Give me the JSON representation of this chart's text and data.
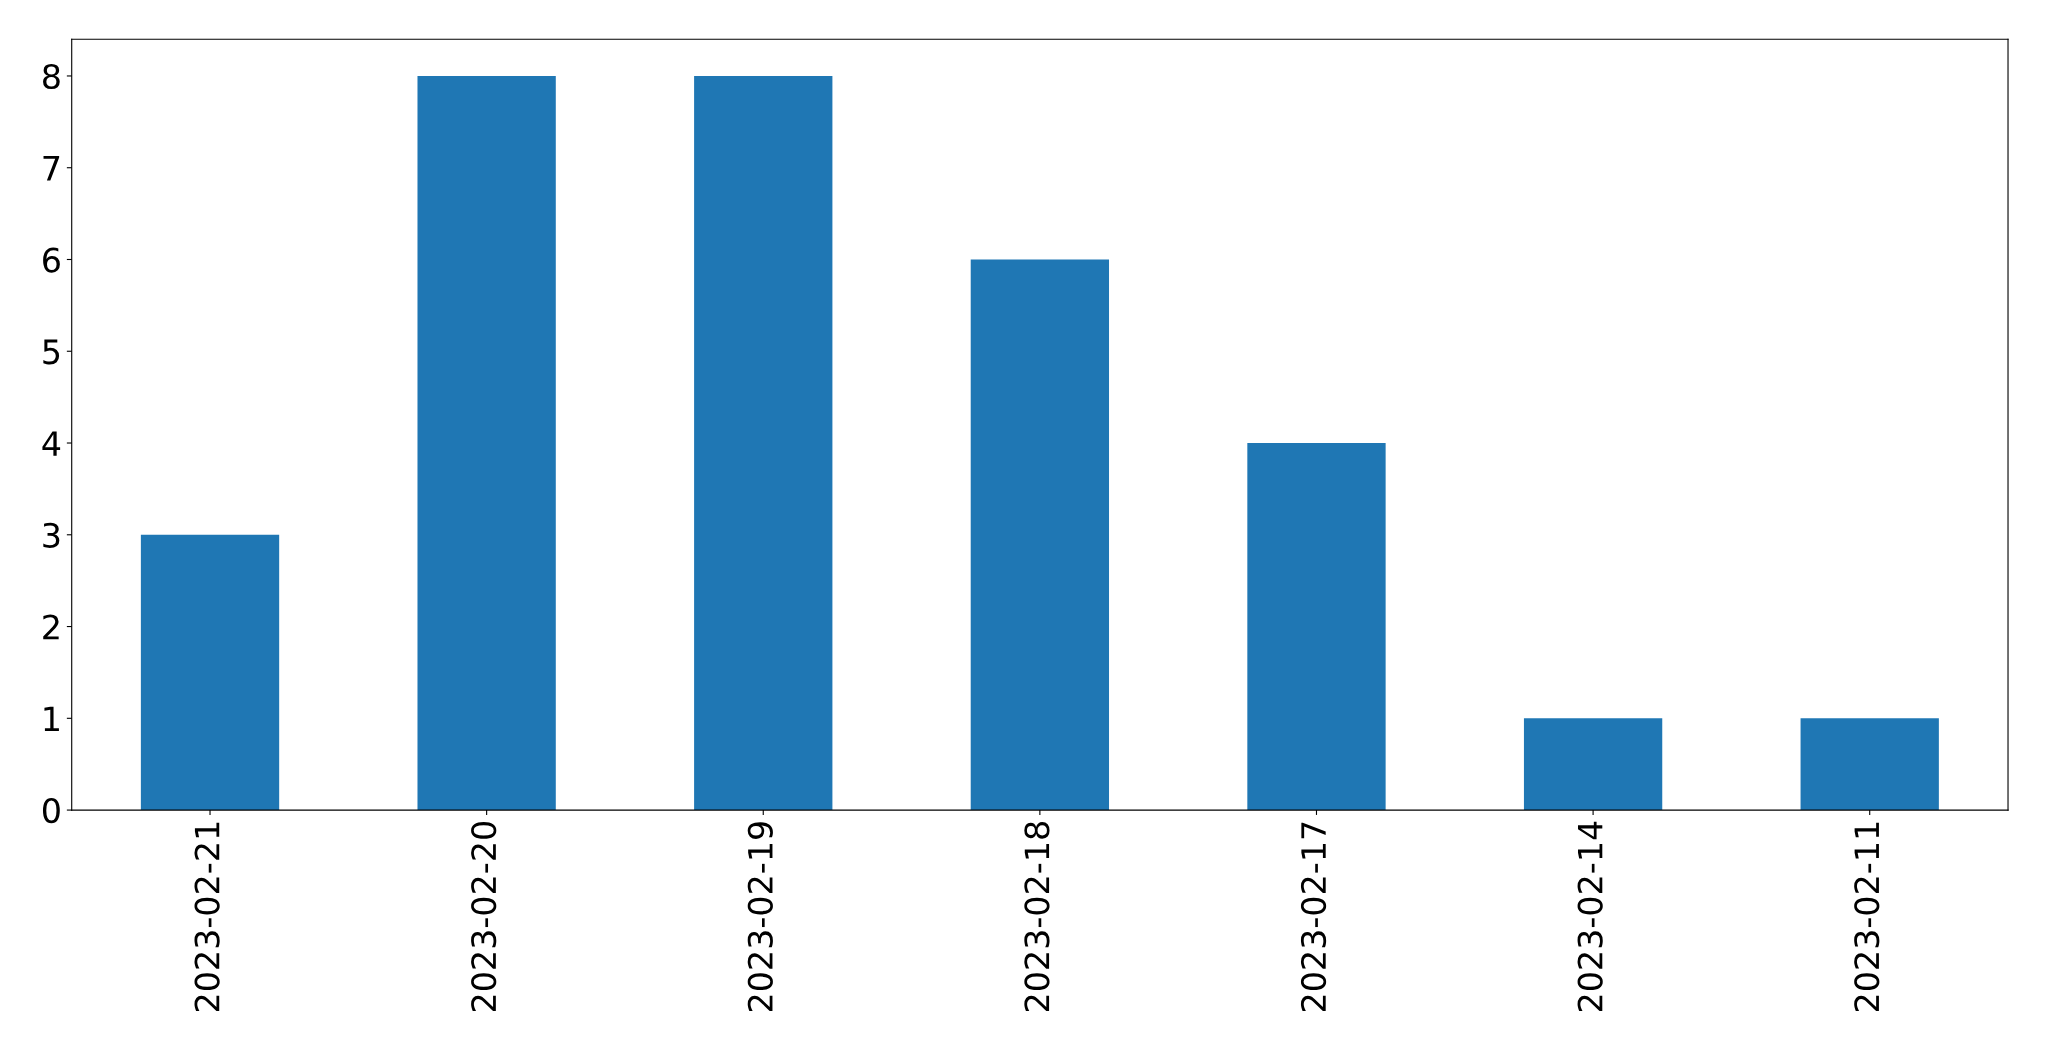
{
  "chart_data": {
    "type": "bar",
    "categories": [
      "2023-02-21",
      "2023-02-20",
      "2023-02-19",
      "2023-02-18",
      "2023-02-17",
      "2023-02-14",
      "2023-02-11"
    ],
    "values": [
      3,
      8,
      8,
      6,
      4,
      1,
      1
    ],
    "color": "#1f77b4",
    "ylim": [
      0,
      8.4
    ],
    "yticks": [
      0,
      1,
      2,
      3,
      4,
      5,
      6,
      7,
      8
    ],
    "grid": false
  }
}
